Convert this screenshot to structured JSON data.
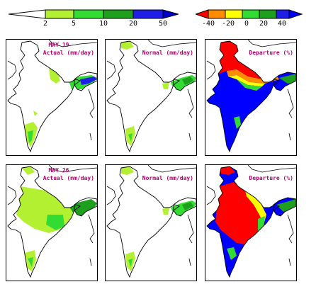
{
  "legend_left": {
    "ticks": [
      "2",
      "5",
      "10",
      "20",
      "50"
    ],
    "colors": [
      "#ffffff",
      "#b4f032",
      "#32dc32",
      "#1ea01e",
      "#1e1ee6",
      "#0000c8"
    ]
  },
  "legend_right": {
    "ticks": [
      "-40",
      "-20",
      "0",
      "20",
      "40"
    ],
    "colors": [
      "#ff0000",
      "#ff8c00",
      "#ffff00",
      "#32dc32",
      "#1ea01e",
      "#0000ff"
    ]
  },
  "rows": [
    {
      "date": "MAY 19",
      "panels": [
        {
          "label": "Actual (mm/day)",
          "kind": "actual"
        },
        {
          "label": "Normal (mm/day)",
          "kind": "normal"
        },
        {
          "label": "Departure (%)",
          "kind": "departure"
        }
      ]
    },
    {
      "date": "MAY 26",
      "panels": [
        {
          "label": "Actual (mm/day)",
          "kind": "actual2"
        },
        {
          "label": "Normal (mm/day)",
          "kind": "normal"
        },
        {
          "label": "Departure (%)",
          "kind": "departure2"
        }
      ]
    }
  ]
}
